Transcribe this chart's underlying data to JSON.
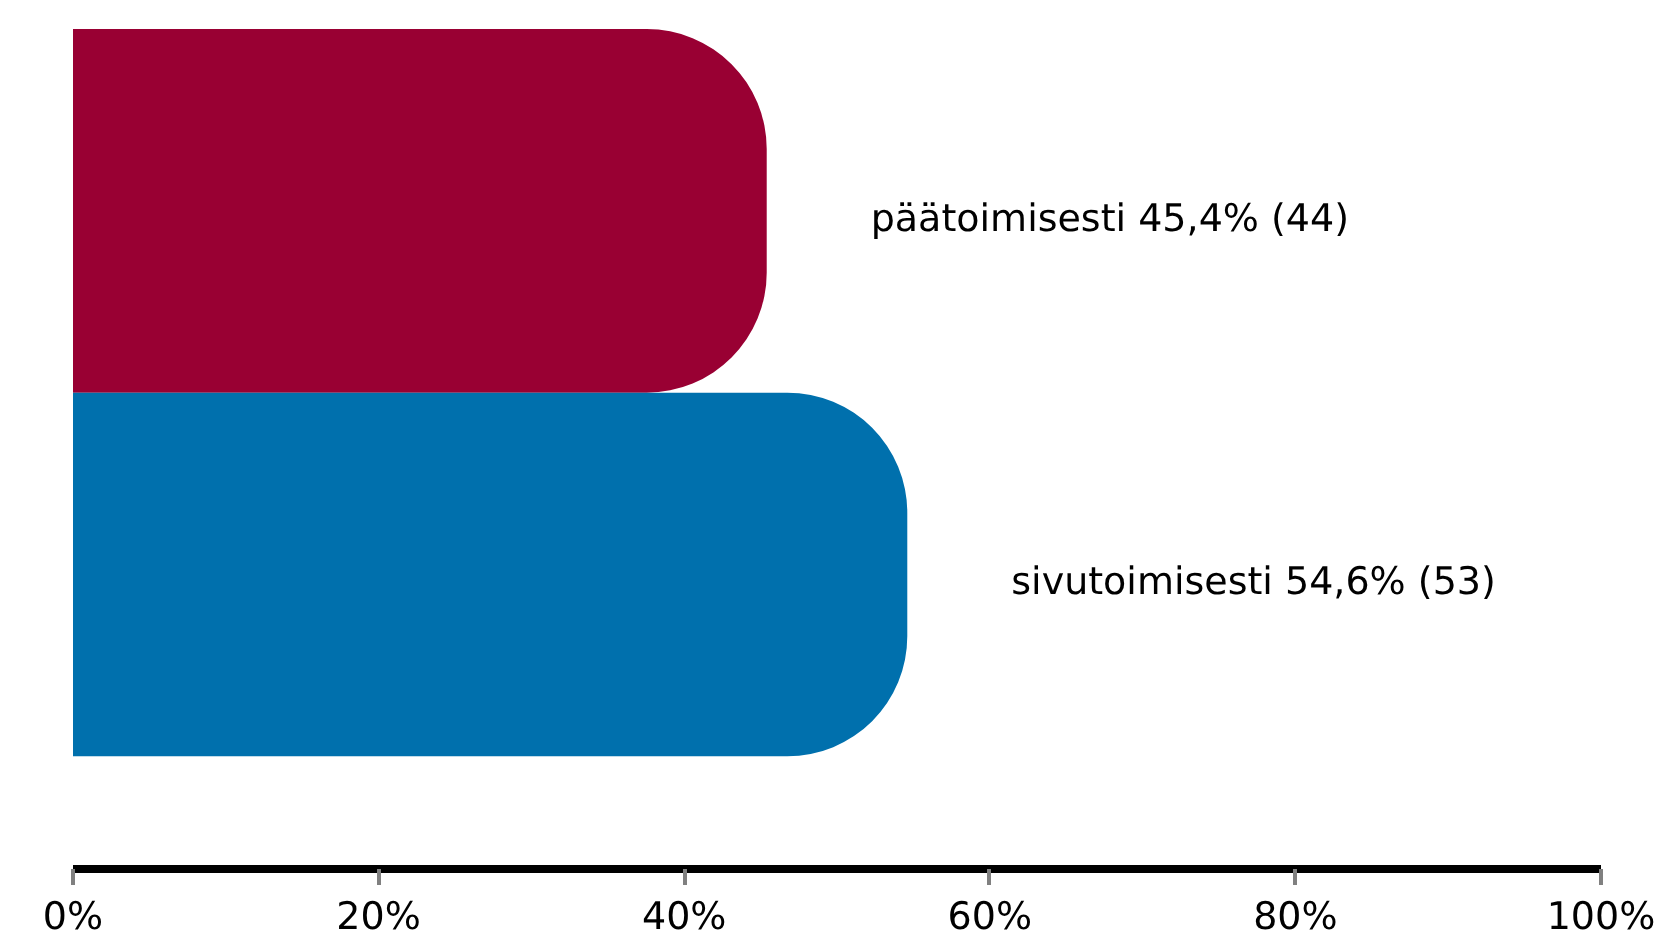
{
  "chart_data": {
    "type": "bar",
    "orientation": "horizontal",
    "categories": [
      null,
      null
    ],
    "values": [
      45.4,
      54.6
    ],
    "colors": [
      "#990033",
      "#0070ad"
    ],
    "value_labels": [
      "päätoimisesti 45,4% (44)",
      "sivutoimisesti 54,6% (53)"
    ],
    "xlim": [
      0,
      100
    ],
    "xticks": [
      {
        "value": 0,
        "label": "0%"
      },
      {
        "value": 20,
        "label": "20%"
      },
      {
        "value": 40,
        "label": "40%"
      },
      {
        "value": 60,
        "label": "60%"
      },
      {
        "value": 80,
        "label": "80%"
      },
      {
        "value": 100,
        "label": "100%"
      }
    ],
    "tick_labels": "x",
    "grid": false
  }
}
